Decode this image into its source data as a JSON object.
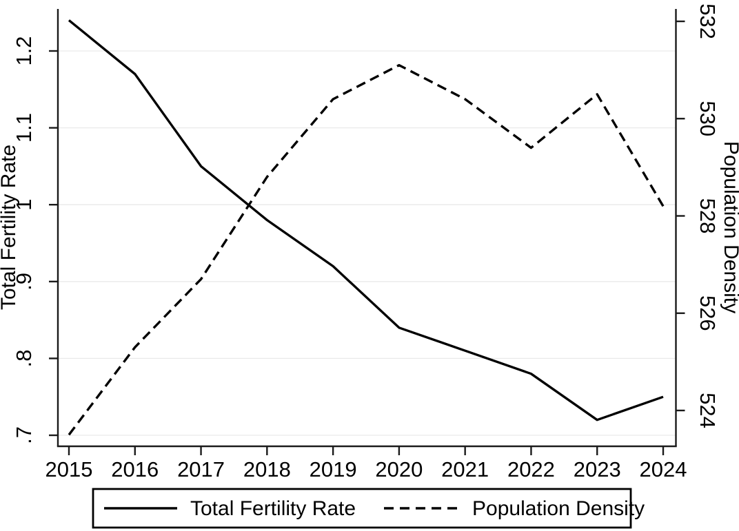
{
  "chart_data": {
    "type": "line",
    "x": [
      2015,
      2016,
      2017,
      2018,
      2019,
      2020,
      2021,
      2022,
      2023,
      2024
    ],
    "x_labels": [
      "2015",
      "2016",
      "2017",
      "2018",
      "2019",
      "2020",
      "2021",
      "2022",
      "2023",
      "2024"
    ],
    "series": [
      {
        "key": "total-fertility-rate",
        "name": "Total Fertility Rate",
        "axis": "left",
        "style": "solid",
        "color": "#000000",
        "values": [
          1.24,
          1.17,
          1.05,
          0.98,
          0.92,
          0.84,
          0.81,
          0.78,
          0.72,
          0.75
        ]
      },
      {
        "key": "population-density",
        "name": "Population Density",
        "axis": "right",
        "style": "dashed",
        "color": "#000000",
        "values": [
          523.5,
          525.3,
          526.7,
          528.8,
          530.4,
          531.1,
          530.4,
          529.4,
          530.5,
          528.2
        ]
      }
    ],
    "left_axis": {
      "label": "Total Fertility Rate",
      "ticks": [
        ".7",
        ".8",
        ".9",
        "1",
        "1.1",
        "1.2"
      ],
      "tick_values": [
        0.7,
        0.8,
        0.9,
        1.0,
        1.1,
        1.2
      ],
      "range": [
        0.69,
        1.25
      ]
    },
    "right_axis": {
      "label": "Population Density",
      "ticks": [
        "524",
        "526",
        "528",
        "530",
        "532"
      ],
      "tick_values": [
        524,
        526,
        528,
        530,
        532
      ],
      "range": [
        523.3,
        532.2
      ]
    },
    "grid": true,
    "legend_position": "bottom",
    "colors": {
      "line": "#000000",
      "axis": "#1a1a1a",
      "grid": "#e9e9e9",
      "background": "#ffffff"
    }
  },
  "legend": {
    "items": [
      {
        "label": "Total Fertility Rate",
        "style": "solid"
      },
      {
        "label": "Population Density",
        "style": "dashed"
      }
    ]
  }
}
